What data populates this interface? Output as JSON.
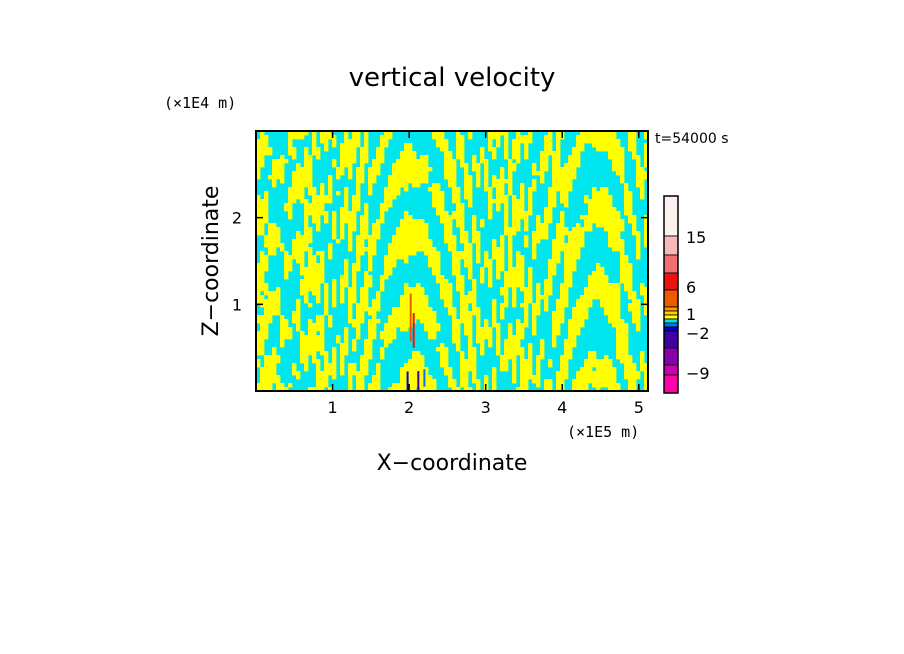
{
  "chart_data": {
    "type": "heatmap",
    "title": "vertical velocity",
    "xlabel": "X−coordinate",
    "ylabel": "Z−coordinate",
    "x_unit": "(×1E5 m)",
    "y_unit": "(×1E4 m)",
    "time_label": "t=54000 s",
    "xlim": [
      0,
      5.12
    ],
    "ylim": [
      0,
      3.0
    ],
    "x_ticks": [
      "1",
      "2",
      "3",
      "4",
      "5"
    ],
    "y_ticks": [
      "1",
      "2"
    ],
    "colors": {
      "positive_small": "#ffff00",
      "negative_small": "#00e5ee",
      "background": "#ffffff"
    },
    "colorbar": {
      "tick_labels": [
        "15",
        "6",
        "1",
        "−2",
        "−9"
      ],
      "levels_top_to_bottom": [
        {
          "color": "#fff0f0"
        },
        {
          "color": "#f8b8b8"
        },
        {
          "color": "#f07070"
        },
        {
          "color": "#ee1111"
        },
        {
          "color": "#ee5a00"
        },
        {
          "color": "#f2a000"
        },
        {
          "color": "#ffd000"
        },
        {
          "color": "#ffff00"
        },
        {
          "color": "#00e5ee"
        },
        {
          "color": "#0070ff"
        },
        {
          "color": "#0000cc"
        },
        {
          "color": "#4000a0"
        },
        {
          "color": "#8800aa"
        },
        {
          "color": "#cc00aa"
        },
        {
          "color": "#ff00aa"
        }
      ]
    }
  }
}
